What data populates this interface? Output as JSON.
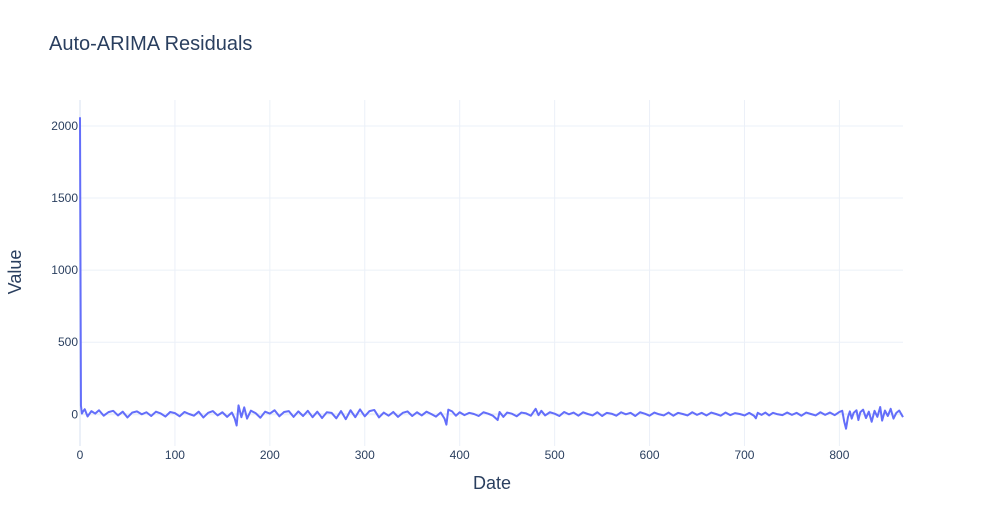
{
  "chart_data": {
    "type": "line",
    "title": "Auto-ARIMA Residuals",
    "xlabel": "Date",
    "ylabel": "Value",
    "xlim": [
      0,
      867
    ],
    "ylim": [
      -220,
      2180
    ],
    "x_ticks": [
      0,
      100,
      200,
      300,
      400,
      500,
      600,
      700,
      800
    ],
    "y_ticks": [
      0,
      500,
      1000,
      1500,
      2000
    ],
    "grid": true,
    "legend": "none",
    "series_color": "#636efa",
    "series": [
      {
        "points": [
          [
            0,
            2060
          ],
          [
            1,
            60
          ],
          [
            2,
            5
          ],
          [
            3,
            18
          ],
          [
            5,
            35
          ],
          [
            8,
            -15
          ],
          [
            12,
            22
          ],
          [
            16,
            5
          ],
          [
            20,
            28
          ],
          [
            25,
            -10
          ],
          [
            30,
            15
          ],
          [
            35,
            24
          ],
          [
            40,
            -8
          ],
          [
            45,
            18
          ],
          [
            50,
            -22
          ],
          [
            55,
            12
          ],
          [
            60,
            20
          ],
          [
            65,
            0
          ],
          [
            70,
            14
          ],
          [
            75,
            -12
          ],
          [
            80,
            18
          ],
          [
            85,
            6
          ],
          [
            90,
            -16
          ],
          [
            95,
            16
          ],
          [
            100,
            8
          ],
          [
            105,
            -14
          ],
          [
            110,
            16
          ],
          [
            115,
            2
          ],
          [
            120,
            -10
          ],
          [
            125,
            18
          ],
          [
            130,
            -22
          ],
          [
            135,
            10
          ],
          [
            140,
            22
          ],
          [
            145,
            -8
          ],
          [
            150,
            14
          ],
          [
            155,
            -18
          ],
          [
            160,
            12
          ],
          [
            163,
            -30
          ],
          [
            165,
            -78
          ],
          [
            167,
            62
          ],
          [
            170,
            -20
          ],
          [
            173,
            48
          ],
          [
            176,
            -30
          ],
          [
            180,
            25
          ],
          [
            185,
            8
          ],
          [
            190,
            -24
          ],
          [
            195,
            18
          ],
          [
            200,
            5
          ],
          [
            205,
            28
          ],
          [
            210,
            -14
          ],
          [
            215,
            16
          ],
          [
            220,
            22
          ],
          [
            225,
            -18
          ],
          [
            230,
            20
          ],
          [
            235,
            -12
          ],
          [
            240,
            24
          ],
          [
            245,
            -20
          ],
          [
            250,
            18
          ],
          [
            255,
            -26
          ],
          [
            260,
            14
          ],
          [
            265,
            10
          ],
          [
            270,
            -28
          ],
          [
            275,
            22
          ],
          [
            280,
            -34
          ],
          [
            285,
            28
          ],
          [
            290,
            -20
          ],
          [
            295,
            34
          ],
          [
            300,
            -14
          ],
          [
            305,
            22
          ],
          [
            310,
            30
          ],
          [
            315,
            -22
          ],
          [
            320,
            12
          ],
          [
            325,
            -10
          ],
          [
            330,
            16
          ],
          [
            335,
            -18
          ],
          [
            340,
            10
          ],
          [
            345,
            20
          ],
          [
            350,
            -12
          ],
          [
            355,
            14
          ],
          [
            360,
            -8
          ],
          [
            365,
            18
          ],
          [
            370,
            2
          ],
          [
            375,
            -16
          ],
          [
            380,
            12
          ],
          [
            384,
            -30
          ],
          [
            386,
            -72
          ],
          [
            388,
            32
          ],
          [
            392,
            20
          ],
          [
            396,
            -10
          ],
          [
            400,
            14
          ],
          [
            405,
            -6
          ],
          [
            410,
            10
          ],
          [
            415,
            2
          ],
          [
            420,
            -12
          ],
          [
            425,
            14
          ],
          [
            430,
            4
          ],
          [
            435,
            -10
          ],
          [
            440,
            -40
          ],
          [
            442,
            16
          ],
          [
            446,
            -18
          ],
          [
            450,
            12
          ],
          [
            455,
            4
          ],
          [
            460,
            -14
          ],
          [
            465,
            12
          ],
          [
            470,
            6
          ],
          [
            475,
            -10
          ],
          [
            480,
            38
          ],
          [
            483,
            -6
          ],
          [
            486,
            24
          ],
          [
            490,
            -8
          ],
          [
            495,
            14
          ],
          [
            500,
            4
          ],
          [
            505,
            -12
          ],
          [
            510,
            16
          ],
          [
            515,
            0
          ],
          [
            520,
            12
          ],
          [
            525,
            -10
          ],
          [
            530,
            14
          ],
          [
            535,
            2
          ],
          [
            540,
            -8
          ],
          [
            545,
            14
          ],
          [
            550,
            -12
          ],
          [
            555,
            10
          ],
          [
            560,
            4
          ],
          [
            565,
            -10
          ],
          [
            570,
            14
          ],
          [
            575,
            0
          ],
          [
            580,
            10
          ],
          [
            585,
            -12
          ],
          [
            590,
            14
          ],
          [
            595,
            4
          ],
          [
            600,
            -10
          ],
          [
            605,
            12
          ],
          [
            610,
            0
          ],
          [
            615,
            -8
          ],
          [
            620,
            12
          ],
          [
            625,
            -10
          ],
          [
            630,
            10
          ],
          [
            635,
            2
          ],
          [
            640,
            -8
          ],
          [
            645,
            14
          ],
          [
            650,
            -4
          ],
          [
            655,
            10
          ],
          [
            660,
            -8
          ],
          [
            665,
            12
          ],
          [
            670,
            2
          ],
          [
            675,
            -10
          ],
          [
            680,
            12
          ],
          [
            685,
            -6
          ],
          [
            690,
            8
          ],
          [
            695,
            2
          ],
          [
            700,
            -8
          ],
          [
            705,
            10
          ],
          [
            710,
            -10
          ],
          [
            712,
            -28
          ],
          [
            714,
            10
          ],
          [
            718,
            -4
          ],
          [
            722,
            12
          ],
          [
            726,
            -8
          ],
          [
            730,
            10
          ],
          [
            735,
            0
          ],
          [
            740,
            -6
          ],
          [
            745,
            12
          ],
          [
            750,
            -4
          ],
          [
            755,
            10
          ],
          [
            760,
            -10
          ],
          [
            765,
            12
          ],
          [
            770,
            2
          ],
          [
            775,
            -8
          ],
          [
            780,
            14
          ],
          [
            785,
            -4
          ],
          [
            790,
            12
          ],
          [
            795,
            -6
          ],
          [
            800,
            16
          ],
          [
            803,
            24
          ],
          [
            805,
            -48
          ],
          [
            807,
            -100
          ],
          [
            809,
            -20
          ],
          [
            811,
            20
          ],
          [
            813,
            -30
          ],
          [
            815,
            10
          ],
          [
            818,
            28
          ],
          [
            820,
            -40
          ],
          [
            822,
            14
          ],
          [
            825,
            32
          ],
          [
            828,
            -26
          ],
          [
            831,
            18
          ],
          [
            834,
            -52
          ],
          [
            837,
            24
          ],
          [
            840,
            -18
          ],
          [
            843,
            50
          ],
          [
            845,
            -44
          ],
          [
            848,
            26
          ],
          [
            851,
            -12
          ],
          [
            854,
            38
          ],
          [
            857,
            -30
          ],
          [
            860,
            10
          ],
          [
            863,
            26
          ],
          [
            867,
            -20
          ]
        ]
      }
    ]
  }
}
